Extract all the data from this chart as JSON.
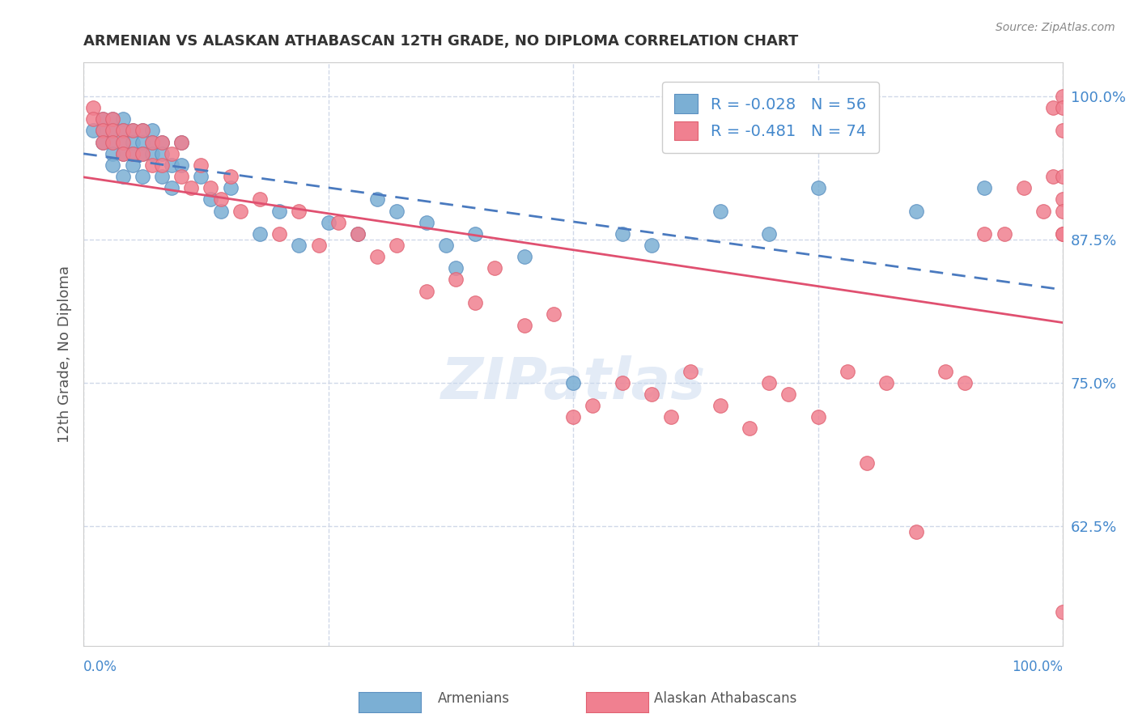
{
  "title": "ARMENIAN VS ALASKAN ATHABASCAN 12TH GRADE, NO DIPLOMA CORRELATION CHART",
  "source": "Source: ZipAtlas.com",
  "ylabel": "12th Grade, No Diploma",
  "ytick_labels": [
    "100.0%",
    "87.5%",
    "75.0%",
    "62.5%"
  ],
  "ytick_values": [
    1.0,
    0.875,
    0.75,
    0.625
  ],
  "xlim": [
    0.0,
    1.0
  ],
  "ylim": [
    0.52,
    1.03
  ],
  "legend_entries": [
    {
      "label": "R = -0.028   N = 56",
      "color": "#aec6e8"
    },
    {
      "label": "R = -0.481   N = 74",
      "color": "#f4b8c8"
    }
  ],
  "watermark": "ZIPatlas",
  "blue_color": "#7bafd4",
  "pink_color": "#f08090",
  "blue_edge": "#5a8fc0",
  "pink_edge": "#e06070",
  "background_color": "#ffffff",
  "grid_color": "#d0d8e8",
  "trendline_blue_color": "#4a7abf",
  "trendline_pink_color": "#e05070",
  "blue_R": -0.028,
  "blue_N": 56,
  "pink_R": -0.481,
  "pink_N": 74,
  "armenian_x": [
    0.01,
    0.02,
    0.02,
    0.02,
    0.03,
    0.03,
    0.03,
    0.03,
    0.03,
    0.04,
    0.04,
    0.04,
    0.04,
    0.04,
    0.05,
    0.05,
    0.05,
    0.05,
    0.06,
    0.06,
    0.06,
    0.06,
    0.07,
    0.07,
    0.07,
    0.08,
    0.08,
    0.08,
    0.09,
    0.09,
    0.1,
    0.1,
    0.12,
    0.13,
    0.14,
    0.15,
    0.18,
    0.2,
    0.22,
    0.25,
    0.28,
    0.3,
    0.32,
    0.35,
    0.37,
    0.38,
    0.4,
    0.45,
    0.5,
    0.55,
    0.58,
    0.65,
    0.7,
    0.75,
    0.85,
    0.92
  ],
  "armenian_y": [
    0.97,
    0.98,
    0.97,
    0.96,
    0.98,
    0.97,
    0.96,
    0.95,
    0.94,
    0.98,
    0.97,
    0.96,
    0.95,
    0.93,
    0.97,
    0.96,
    0.95,
    0.94,
    0.97,
    0.96,
    0.95,
    0.93,
    0.97,
    0.96,
    0.95,
    0.96,
    0.95,
    0.93,
    0.94,
    0.92,
    0.96,
    0.94,
    0.93,
    0.91,
    0.9,
    0.92,
    0.88,
    0.9,
    0.87,
    0.89,
    0.88,
    0.91,
    0.9,
    0.89,
    0.87,
    0.85,
    0.88,
    0.86,
    0.75,
    0.88,
    0.87,
    0.9,
    0.88,
    0.92,
    0.9,
    0.92
  ],
  "athabascan_x": [
    0.01,
    0.01,
    0.02,
    0.02,
    0.02,
    0.03,
    0.03,
    0.03,
    0.04,
    0.04,
    0.04,
    0.05,
    0.05,
    0.06,
    0.06,
    0.07,
    0.07,
    0.08,
    0.08,
    0.09,
    0.1,
    0.1,
    0.11,
    0.12,
    0.13,
    0.14,
    0.15,
    0.16,
    0.18,
    0.2,
    0.22,
    0.24,
    0.26,
    0.28,
    0.3,
    0.32,
    0.35,
    0.38,
    0.4,
    0.42,
    0.45,
    0.48,
    0.5,
    0.52,
    0.55,
    0.58,
    0.6,
    0.62,
    0.65,
    0.68,
    0.7,
    0.72,
    0.75,
    0.78,
    0.8,
    0.82,
    0.85,
    0.88,
    0.9,
    0.92,
    0.94,
    0.96,
    0.98,
    0.99,
    0.99,
    1.0,
    1.0,
    1.0,
    1.0,
    1.0,
    1.0,
    1.0,
    1.0,
    1.0
  ],
  "athabascan_y": [
    0.99,
    0.98,
    0.98,
    0.97,
    0.96,
    0.98,
    0.97,
    0.96,
    0.97,
    0.96,
    0.95,
    0.97,
    0.95,
    0.97,
    0.95,
    0.96,
    0.94,
    0.96,
    0.94,
    0.95,
    0.96,
    0.93,
    0.92,
    0.94,
    0.92,
    0.91,
    0.93,
    0.9,
    0.91,
    0.88,
    0.9,
    0.87,
    0.89,
    0.88,
    0.86,
    0.87,
    0.83,
    0.84,
    0.82,
    0.85,
    0.8,
    0.81,
    0.72,
    0.73,
    0.75,
    0.74,
    0.72,
    0.76,
    0.73,
    0.71,
    0.75,
    0.74,
    0.72,
    0.76,
    0.68,
    0.75,
    0.62,
    0.76,
    0.75,
    0.88,
    0.88,
    0.92,
    0.9,
    0.99,
    0.93,
    1.0,
    0.99,
    0.97,
    0.93,
    0.91,
    0.9,
    0.88,
    0.55,
    0.88
  ]
}
